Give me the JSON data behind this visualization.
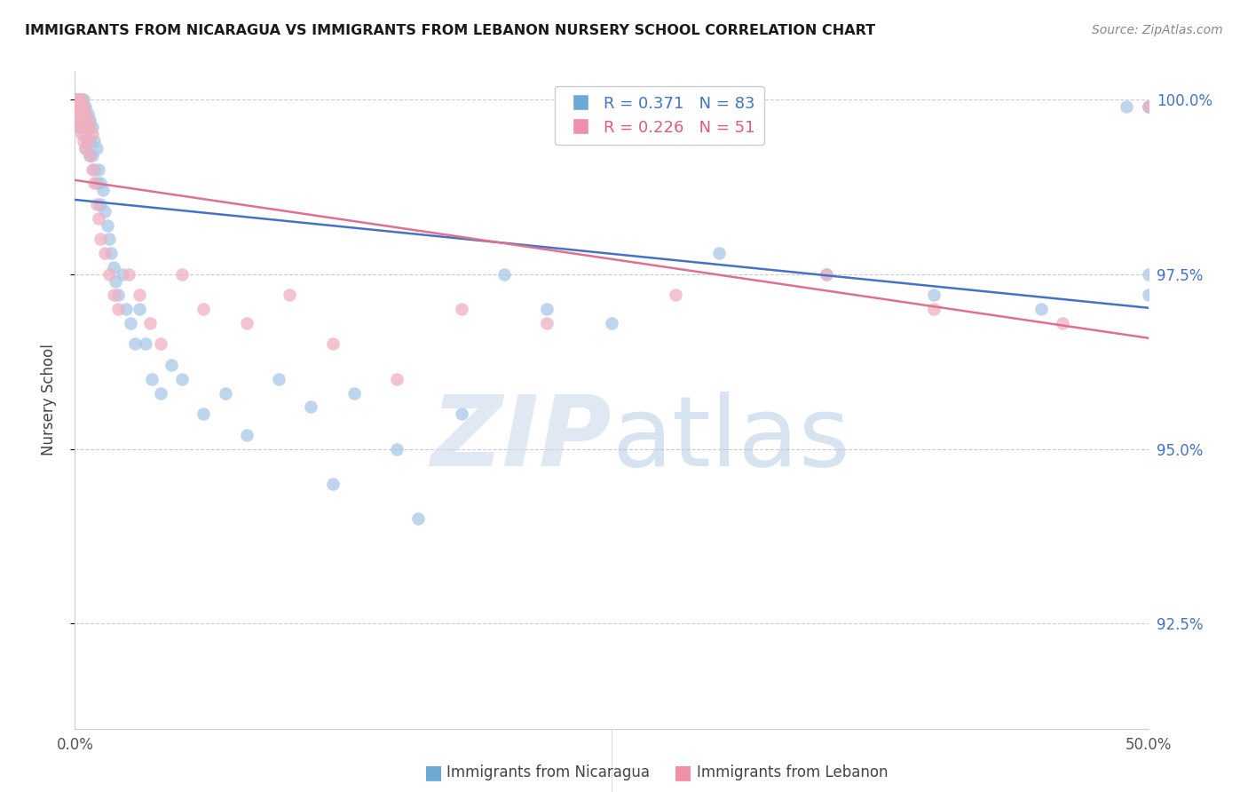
{
  "title": "IMMIGRANTS FROM NICARAGUA VS IMMIGRANTS FROM LEBANON NURSERY SCHOOL CORRELATION CHART",
  "source": "Source: ZipAtlas.com",
  "ylabel": "Nursery School",
  "legend_nicaragua": "Immigrants from Nicaragua",
  "legend_lebanon": "Immigrants from Lebanon",
  "R_nicaragua": 0.371,
  "N_nicaragua": 83,
  "R_lebanon": 0.226,
  "N_lebanon": 51,
  "blue_color": "#a8c8e8",
  "pink_color": "#f0b0c0",
  "blue_line_color": "#4472c4",
  "pink_line_color": "#e07090",
  "blue_legend_color": "#6aaad4",
  "pink_legend_color": "#f090a8",
  "xlim": [
    0.0,
    0.5
  ],
  "ylim": [
    0.91,
    1.004
  ],
  "yticks": [
    0.925,
    0.95,
    0.975,
    1.0
  ],
  "ytick_labels": [
    "92.5%",
    "95.0%",
    "97.5%",
    "100.0%"
  ],
  "nic_x": [
    0.001,
    0.001,
    0.001,
    0.001,
    0.001,
    0.001,
    0.002,
    0.002,
    0.002,
    0.002,
    0.002,
    0.002,
    0.002,
    0.003,
    0.003,
    0.003,
    0.003,
    0.003,
    0.003,
    0.004,
    0.004,
    0.004,
    0.004,
    0.005,
    0.005,
    0.005,
    0.005,
    0.005,
    0.006,
    0.006,
    0.006,
    0.007,
    0.007,
    0.007,
    0.008,
    0.008,
    0.009,
    0.009,
    0.01,
    0.01,
    0.011,
    0.012,
    0.012,
    0.013,
    0.014,
    0.015,
    0.016,
    0.017,
    0.018,
    0.019,
    0.02,
    0.022,
    0.024,
    0.026,
    0.028,
    0.03,
    0.033,
    0.036,
    0.04,
    0.045,
    0.05,
    0.06,
    0.07,
    0.08,
    0.095,
    0.11,
    0.13,
    0.15,
    0.18,
    0.12,
    0.16,
    0.2,
    0.22,
    0.25,
    0.3,
    0.35,
    0.4,
    0.45,
    0.49,
    0.5,
    0.5,
    0.5,
    0.5
  ],
  "nic_y": [
    1.0,
    1.0,
    1.0,
    1.0,
    0.999,
    0.999,
    1.0,
    1.0,
    1.0,
    0.999,
    0.998,
    0.997,
    0.996,
    1.0,
    1.0,
    0.999,
    0.998,
    0.997,
    0.996,
    1.0,
    0.999,
    0.998,
    0.996,
    0.999,
    0.998,
    0.997,
    0.995,
    0.993,
    0.998,
    0.996,
    0.994,
    0.997,
    0.994,
    0.992,
    0.996,
    0.992,
    0.994,
    0.99,
    0.993,
    0.988,
    0.99,
    0.988,
    0.985,
    0.987,
    0.984,
    0.982,
    0.98,
    0.978,
    0.976,
    0.974,
    0.972,
    0.975,
    0.97,
    0.968,
    0.965,
    0.97,
    0.965,
    0.96,
    0.958,
    0.962,
    0.96,
    0.955,
    0.958,
    0.952,
    0.96,
    0.956,
    0.958,
    0.95,
    0.955,
    0.945,
    0.94,
    0.975,
    0.97,
    0.968,
    0.978,
    0.975,
    0.972,
    0.97,
    0.999,
    0.999,
    0.975,
    0.972,
    0.999
  ],
  "leb_x": [
    0.001,
    0.001,
    0.001,
    0.001,
    0.001,
    0.001,
    0.002,
    0.002,
    0.002,
    0.002,
    0.003,
    0.003,
    0.003,
    0.003,
    0.004,
    0.004,
    0.004,
    0.005,
    0.005,
    0.005,
    0.006,
    0.006,
    0.007,
    0.007,
    0.008,
    0.008,
    0.009,
    0.01,
    0.011,
    0.012,
    0.014,
    0.016,
    0.018,
    0.02,
    0.025,
    0.03,
    0.035,
    0.04,
    0.05,
    0.06,
    0.08,
    0.1,
    0.12,
    0.15,
    0.18,
    0.22,
    0.28,
    0.35,
    0.4,
    0.46,
    0.5
  ],
  "leb_y": [
    1.0,
    1.0,
    1.0,
    0.999,
    0.998,
    0.997,
    1.0,
    0.999,
    0.998,
    0.996,
    1.0,
    0.999,
    0.997,
    0.995,
    0.999,
    0.997,
    0.994,
    0.998,
    0.996,
    0.993,
    0.997,
    0.994,
    0.996,
    0.992,
    0.995,
    0.99,
    0.988,
    0.985,
    0.983,
    0.98,
    0.978,
    0.975,
    0.972,
    0.97,
    0.975,
    0.972,
    0.968,
    0.965,
    0.975,
    0.97,
    0.968,
    0.972,
    0.965,
    0.96,
    0.97,
    0.968,
    0.972,
    0.975,
    0.97,
    0.968,
    0.999
  ]
}
